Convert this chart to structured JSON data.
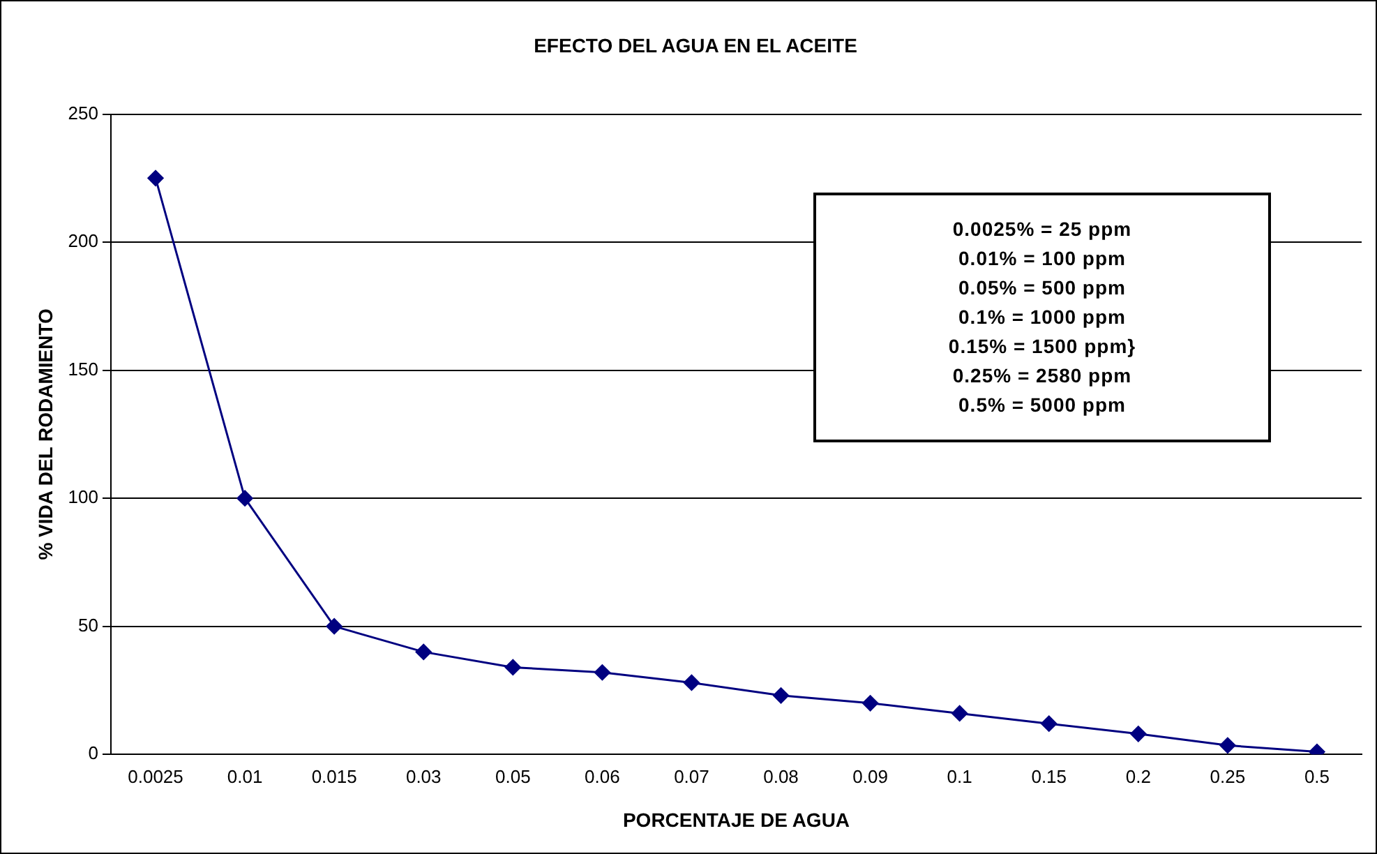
{
  "chart_data": {
    "type": "line",
    "title": "EFECTO DEL AGUA EN EL ACEITE",
    "xlabel": "PORCENTAJE DE AGUA",
    "ylabel": "% VIDA DEL RODAMIENTO",
    "categories": [
      "0.0025",
      "0.01",
      "0.015",
      "0.03",
      "0.05",
      "0.06",
      "0.07",
      "0.08",
      "0.09",
      "0.1",
      "0.15",
      "0.2",
      "0.25",
      "0.5"
    ],
    "series": [
      {
        "color": "#000080",
        "values": [
          225,
          100,
          50,
          40,
          34,
          32,
          28,
          23,
          20,
          16,
          12,
          8,
          3.5,
          1
        ]
      }
    ],
    "ylim": [
      0,
      250
    ],
    "yticks": [
      0,
      50,
      100,
      150,
      200,
      250
    ],
    "grid": "y",
    "legend": false,
    "marker": "diamond",
    "line_style": "solid",
    "annotations": [
      "0.0025% = 25 ppm",
      "0.01% = 100 ppm",
      "0.05% = 500 ppm",
      "0.1% = 1000 ppm",
      "0.15% = 1500 ppm}",
      "0.25% = 2580 ppm",
      "0.5% = 5000 ppm"
    ]
  }
}
